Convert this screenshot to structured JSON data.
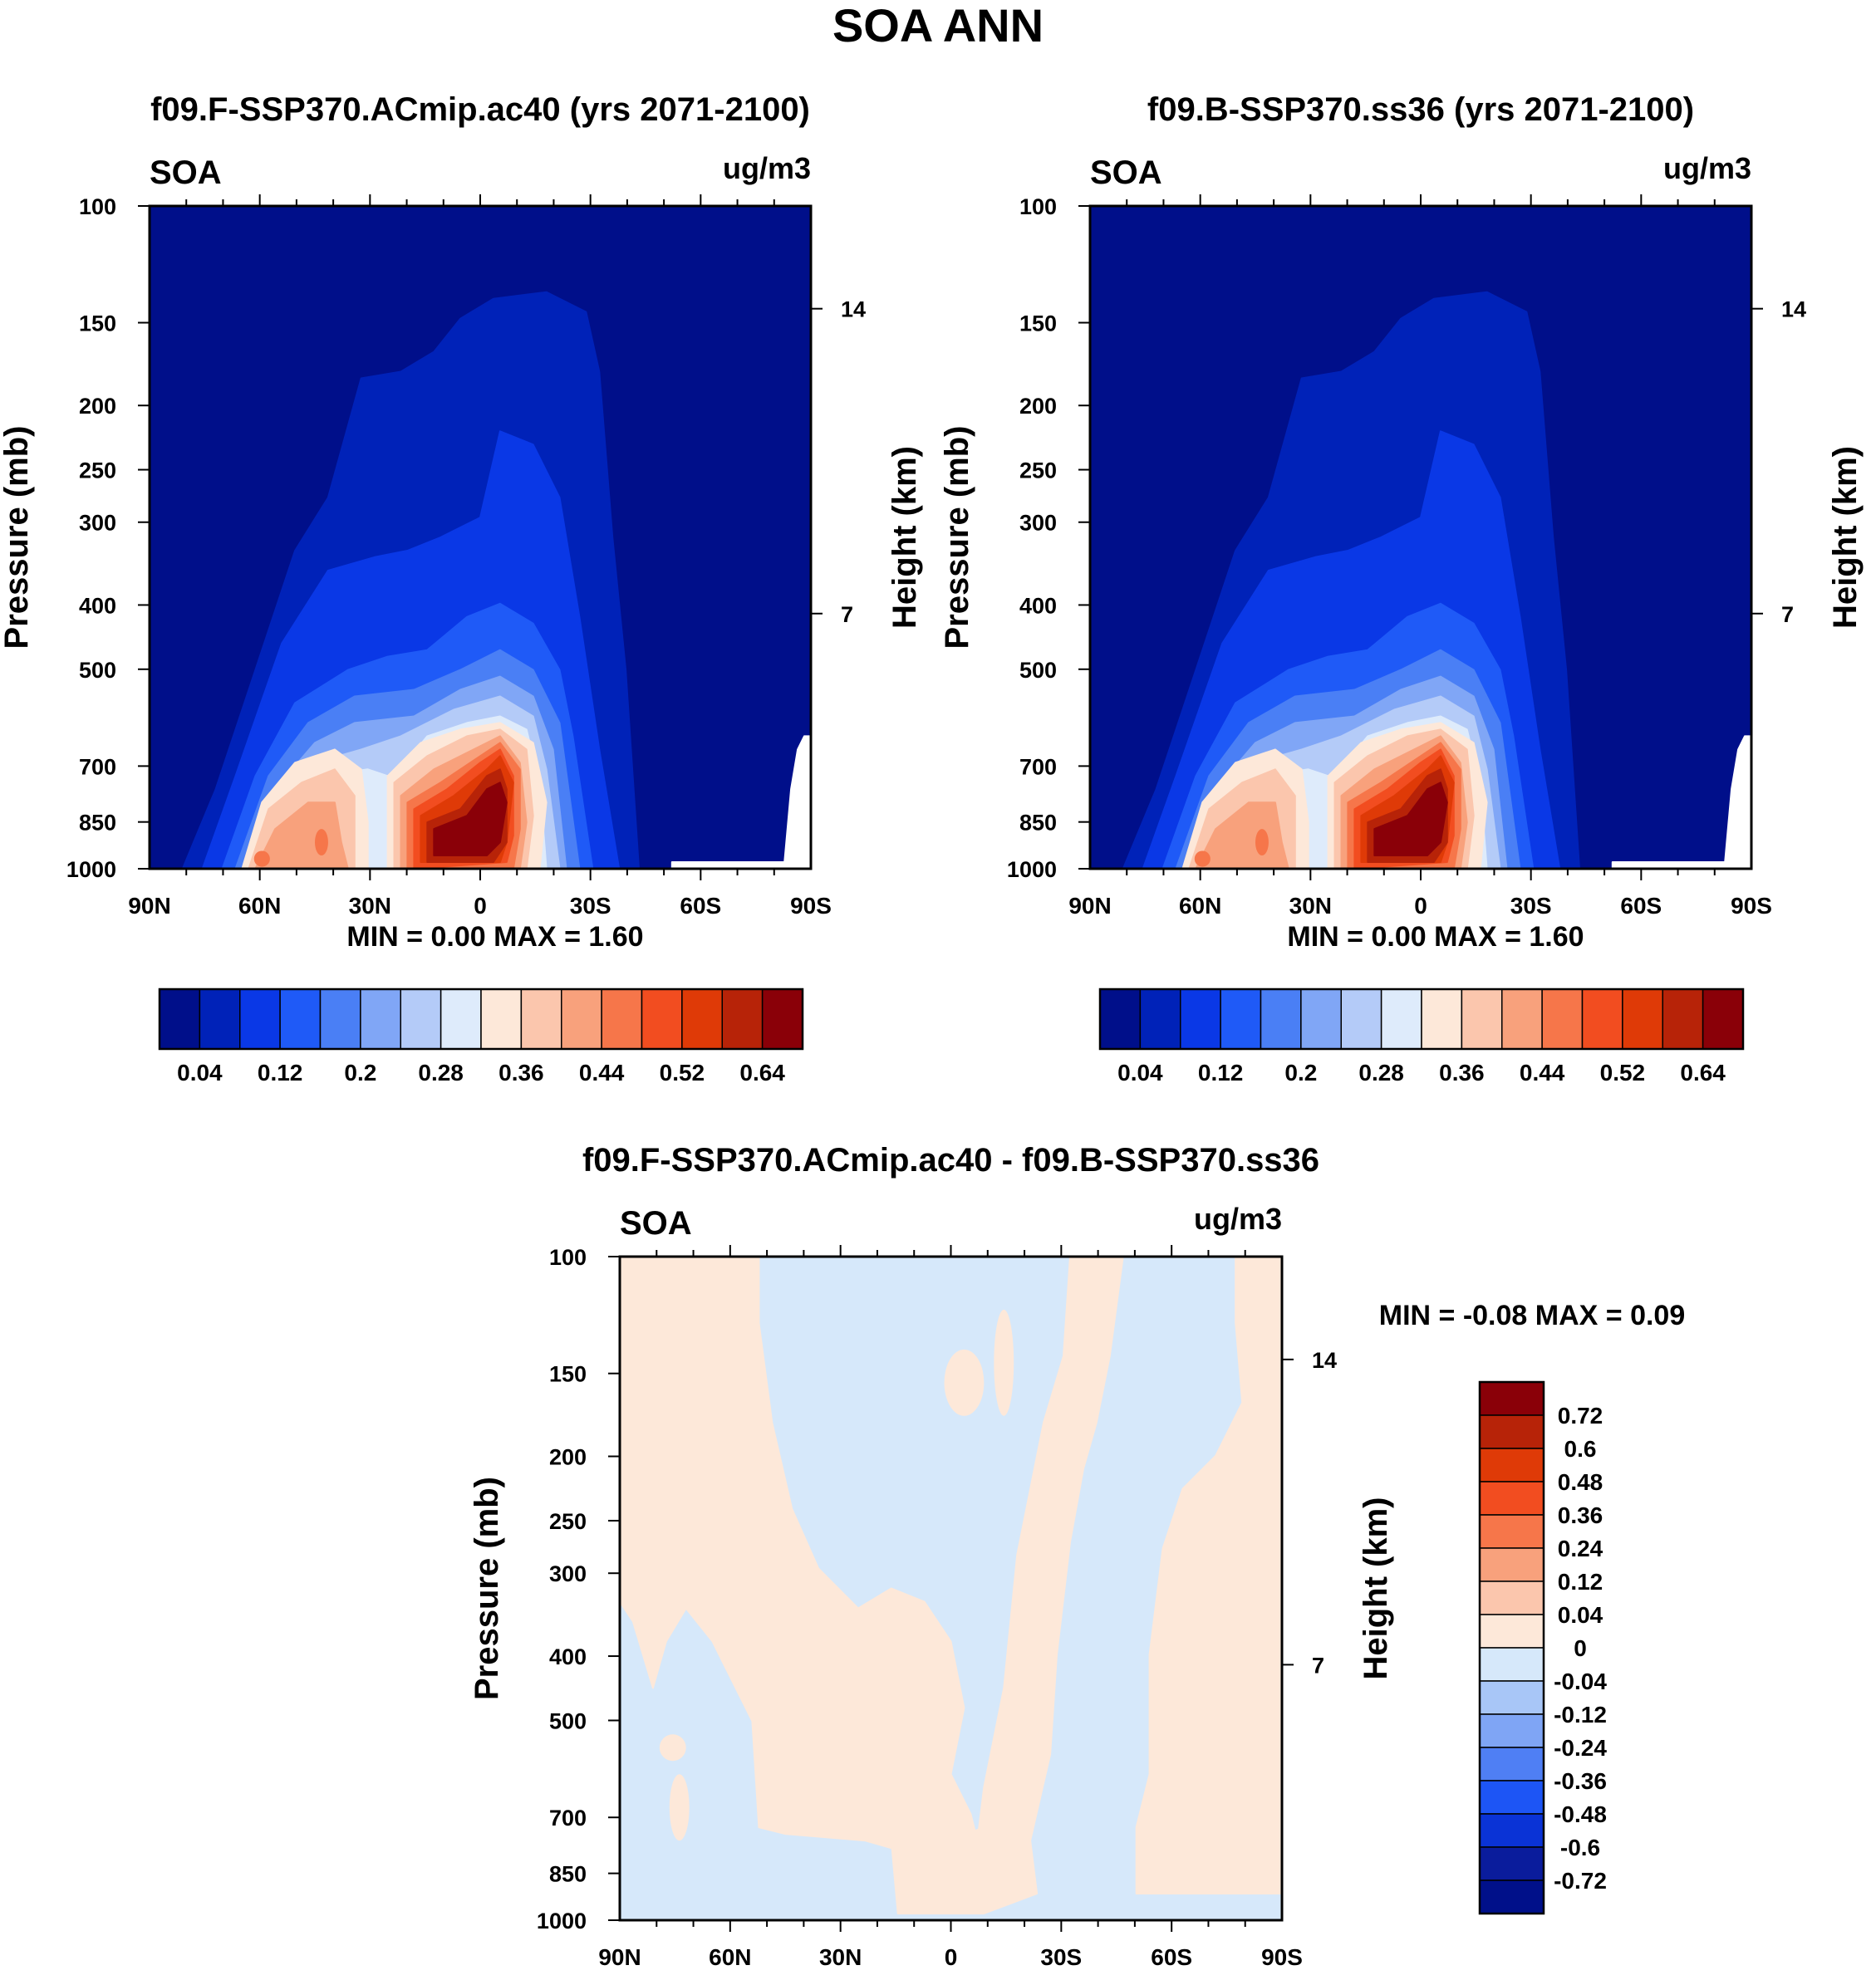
{
  "figure_title": "SOA ANN",
  "chart_data": [
    {
      "type": "heatmap",
      "title": "f09.F-SSP370.ACmip.ac40 (yrs 2071-2100)",
      "left_label": "SOA",
      "right_label": "ug/m3",
      "ylabel": "Pressure (mb)",
      "ylabel_right": "Height (km)",
      "x_ticks": [
        "90N",
        "60N",
        "30N",
        "0",
        "30S",
        "60S",
        "90S"
      ],
      "y_ticks": [
        "100",
        "150",
        "200",
        "250",
        "300",
        "400",
        "500",
        "700",
        "850",
        "1000"
      ],
      "height_ticks": [
        "14",
        "7"
      ],
      "stats": {
        "min_label": "MIN =",
        "min": "0.00",
        "max_label": "MAX =",
        "max": "1.60"
      },
      "colorbar_labels": [
        "0.04",
        "0.12",
        "0.2",
        "0.28",
        "0.36",
        "0.44",
        "0.52",
        "0.64"
      ]
    },
    {
      "type": "heatmap",
      "title": "f09.B-SSP370.ss36 (yrs 2071-2100)",
      "left_label": "SOA",
      "right_label": "ug/m3",
      "ylabel": "Pressure (mb)",
      "ylabel_right": "Height (km)",
      "x_ticks": [
        "90N",
        "60N",
        "30N",
        "0",
        "30S",
        "60S",
        "90S"
      ],
      "y_ticks": [
        "100",
        "150",
        "200",
        "250",
        "300",
        "400",
        "500",
        "700",
        "850",
        "1000"
      ],
      "height_ticks": [
        "14",
        "7"
      ],
      "stats": {
        "min_label": "MIN =",
        "min": "0.00",
        "max_label": "MAX =",
        "max": "1.60"
      },
      "colorbar_labels": [
        "0.04",
        "0.12",
        "0.2",
        "0.28",
        "0.36",
        "0.44",
        "0.52",
        "0.64"
      ]
    },
    {
      "type": "heatmap",
      "title": "f09.F-SSP370.ACmip.ac40 - f09.B-SSP370.ss36",
      "left_label": "SOA",
      "right_label": "ug/m3",
      "ylabel": "Pressure (mb)",
      "ylabel_right": "Height (km)",
      "x_ticks": [
        "90N",
        "60N",
        "30N",
        "0",
        "30S",
        "60S",
        "90S"
      ],
      "y_ticks": [
        "100",
        "150",
        "200",
        "250",
        "300",
        "400",
        "500",
        "700",
        "850",
        "1000"
      ],
      "height_ticks": [
        "14",
        "7"
      ],
      "stats": {
        "min_label": "MIN =",
        "min": "-0.08",
        "max_label": "MAX =",
        "max": "0.09"
      },
      "colorbar_labels": [
        "0.72",
        "0.6",
        "0.48",
        "0.36",
        "0.24",
        "0.12",
        "0.04",
        "0",
        "-0.04",
        "-0.12",
        "-0.24",
        "-0.36",
        "-0.48",
        "-0.6",
        "-0.72"
      ]
    }
  ],
  "colors": {
    "sequential": [
      "#000f8a",
      "#0022b8",
      "#0a38e6",
      "#1f5af7",
      "#4a7ff5",
      "#80a6f6",
      "#b4cbf8",
      "#deebfb",
      "#fde8d9",
      "#fbc6ad",
      "#f8a17c",
      "#f6764a",
      "#f24d20",
      "#df3a07",
      "#b72308",
      "#8a0008"
    ],
    "diverging": [
      "#8a0008",
      "#b72308",
      "#df3a07",
      "#f24d20",
      "#f6764a",
      "#f8a17c",
      "#fbc6ad",
      "#fde8d9",
      "#d6e8fa",
      "#a8c6f7",
      "#7fa5f5",
      "#4f7ff4",
      "#1d55f5",
      "#0a33d6",
      "#0a1c9c",
      "#00108a"
    ]
  }
}
